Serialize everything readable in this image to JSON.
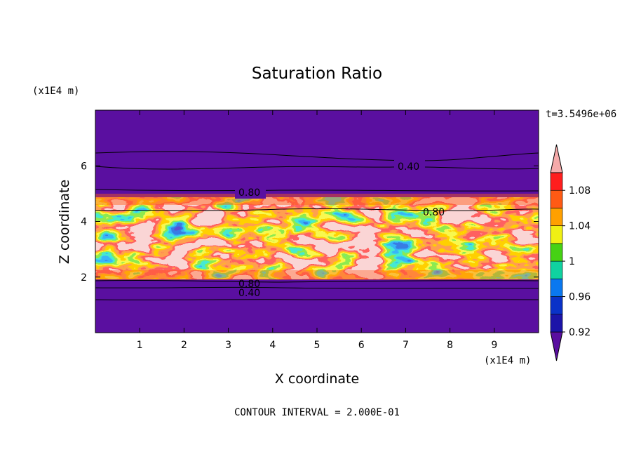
{
  "chart_data": {
    "type": "heatmap",
    "title": "Saturation Ratio",
    "xlabel": "X coordinate",
    "ylabel": "Z coordinate",
    "x_unit": "(x1E4 m)",
    "y_unit": "(x1E4 m)",
    "time_label": "t=3.5496e+06",
    "footer": "CONTOUR INTERVAL = 2.000E-01",
    "xlim": [
      0,
      10
    ],
    "ylim": [
      0,
      8
    ],
    "x_ticks": [
      1,
      2,
      3,
      4,
      5,
      6,
      7,
      8,
      9
    ],
    "y_ticks": [
      2,
      4,
      6
    ],
    "colorbar": {
      "levels": [
        0.92,
        0.94,
        0.96,
        0.98,
        1.0,
        1.02,
        1.04,
        1.06,
        1.08,
        1.1
      ],
      "colors": [
        "#5a0fa0",
        "#1c14a8",
        "#0a32c8",
        "#0a78f0",
        "#10d2a0",
        "#46d214",
        "#f0f014",
        "#ffa000",
        "#ff5a14",
        "#ff1e1e",
        "#f5aaaa"
      ],
      "tick_labels": [
        "0.92",
        "0.96",
        "1",
        "1.04",
        "1.08"
      ],
      "tick_values": [
        0.92,
        0.96,
        1.0,
        1.04,
        1.08
      ],
      "extend": "both"
    },
    "contour_interval": 0.2,
    "contour_labels": [
      {
        "text": "0.40",
        "x": 7.1,
        "z": 5.95
      },
      {
        "text": "0.80",
        "x": 3.5,
        "z": 5.05
      },
      {
        "text": "0.80",
        "x": 7.6,
        "z": 4.3
      },
      {
        "text": "0.80",
        "x": 3.5,
        "z": 1.8
      },
      {
        "text": "0.40",
        "x": 3.5,
        "z": 1.45
      }
    ]
  }
}
